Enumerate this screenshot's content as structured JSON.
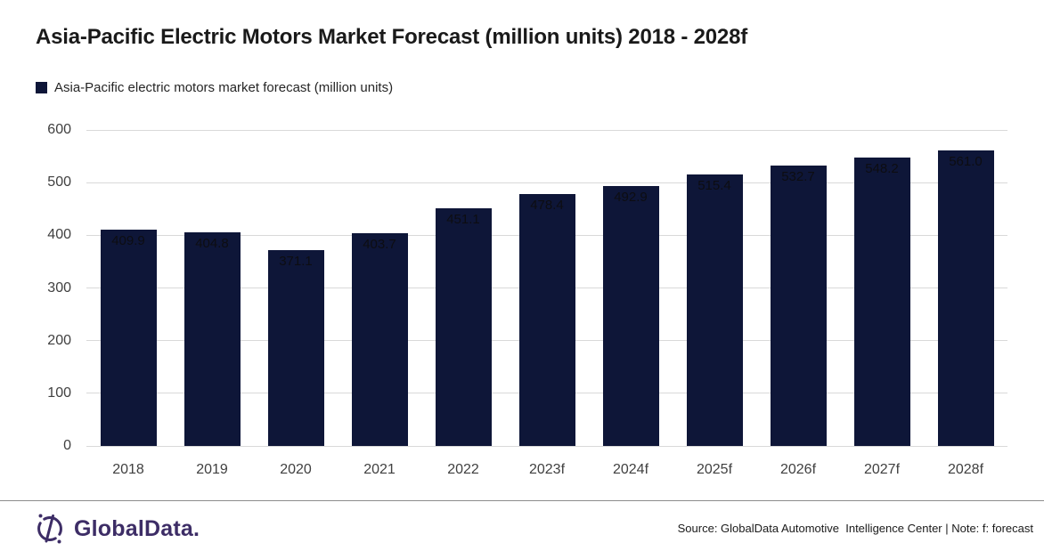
{
  "title": "Asia-Pacific Electric Motors Market Forecast (million units) 2018 - 2028f",
  "legend": {
    "label": "Asia-Pacific electric motors market forecast (million units)"
  },
  "chart_data": {
    "type": "bar",
    "categories": [
      "2018",
      "2019",
      "2020",
      "2021",
      "2022",
      "2023f",
      "2024f",
      "2025f",
      "2026f",
      "2027f",
      "2028f"
    ],
    "values": [
      409.9,
      404.8,
      371.1,
      403.7,
      451.1,
      478.4,
      492.9,
      515.4,
      532.7,
      548.2,
      561.0
    ],
    "title": "Asia-Pacific Electric Motors Market Forecast (million units) 2018 - 2028f",
    "xlabel": "",
    "ylabel": "",
    "ylim": [
      0,
      600
    ],
    "ytick_step": 100,
    "grid": true,
    "legend_position": "top-left",
    "legend_entries": [
      "Asia-Pacific electric motors market forecast (million units)"
    ],
    "value_labels_decimals": 1,
    "bar_color": "#0e1638"
  },
  "colors": {
    "bar": "#0e1638",
    "gridline": "#d9d9d9",
    "brand_purple": "#3d2d66"
  },
  "footer": {
    "brand": "GlobalData.",
    "source": "Source: GlobalData Automotive  Intelligence Center | Note: f: forecast"
  }
}
